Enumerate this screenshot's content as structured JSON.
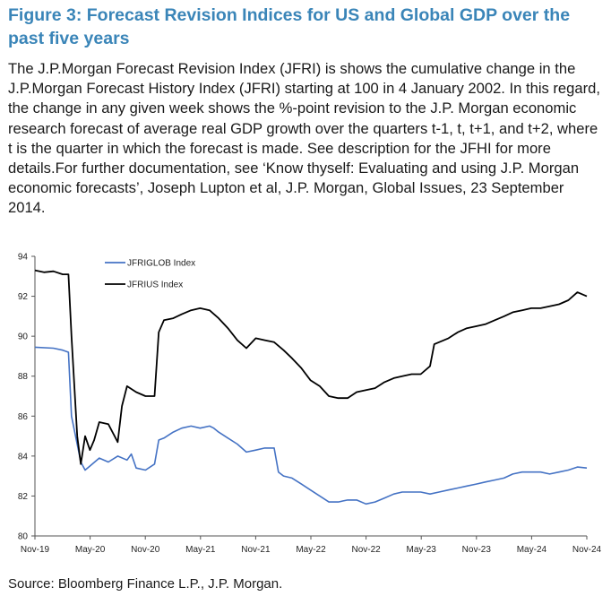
{
  "figure": {
    "title": "Figure 3: Forecast Revision Indices for US and Global GDP over the past five years",
    "description": "The J.P.Morgan Forecast Revision Index (JFRI) is shows the cumulative change in the J.P.Morgan Forecast History Index (JFRI) starting at 100 in 4 January 2002. In this regard, the change in any given week shows the %-point revision to the J.P. Morgan economic research forecast of average real GDP growth over the quarters t-1, t, t+1, and t+2, where t is the quarter in which the forecast is made. See description for the JFHI for more details.For further documentation, see ‘Know thyself: Evaluating and using J.P. Morgan economic forecasts’, Joseph Lupton et al, J.P. Morgan, Global Issues, 23 September 2014.",
    "source": "Source: Bloomberg Finance L.P., J.P. Morgan."
  },
  "chart_data": {
    "type": "line",
    "title": "",
    "xlabel": "",
    "ylabel": "",
    "ylim": [
      80,
      94
    ],
    "yticks": [
      80,
      82,
      84,
      86,
      88,
      90,
      92,
      94
    ],
    "xlim": [
      "2019-11",
      "2024-11"
    ],
    "xticks": [
      "Nov-19",
      "May-20",
      "Nov-20",
      "May-21",
      "Nov-21",
      "May-22",
      "Nov-22",
      "May-23",
      "Nov-23",
      "May-24",
      "Nov-24"
    ],
    "grid": false,
    "legend_position": "top-left",
    "series": [
      {
        "name": "JFRIGLOB Index",
        "color": "#4472c4",
        "points": [
          [
            "2019-11",
            89.45
          ],
          [
            "2020-01",
            89.4
          ],
          [
            "2020-02",
            89.3
          ],
          [
            "2020-02-20",
            89.2
          ],
          [
            "2020-03",
            86.0
          ],
          [
            "2020-04",
            83.7
          ],
          [
            "2020-04-15",
            83.3
          ],
          [
            "2020-05",
            83.5
          ],
          [
            "2020-06",
            83.9
          ],
          [
            "2020-07",
            83.7
          ],
          [
            "2020-08",
            84.0
          ],
          [
            "2020-09",
            83.8
          ],
          [
            "2020-09-15",
            84.1
          ],
          [
            "2020-10",
            83.4
          ],
          [
            "2020-11",
            83.3
          ],
          [
            "2020-12",
            83.6
          ],
          [
            "2020-12-15",
            84.8
          ],
          [
            "2021-01",
            84.9
          ],
          [
            "2021-02",
            85.2
          ],
          [
            "2021-03",
            85.4
          ],
          [
            "2021-04",
            85.5
          ],
          [
            "2021-05",
            85.4
          ],
          [
            "2021-06",
            85.5
          ],
          [
            "2021-06-15",
            85.4
          ],
          [
            "2021-07",
            85.2
          ],
          [
            "2021-08",
            84.9
          ],
          [
            "2021-09",
            84.6
          ],
          [
            "2021-10",
            84.2
          ],
          [
            "2021-11",
            84.3
          ],
          [
            "2021-12",
            84.4
          ],
          [
            "2022-01",
            84.4
          ],
          [
            "2022-01-15",
            83.2
          ],
          [
            "2022-02",
            83.0
          ],
          [
            "2022-03",
            82.9
          ],
          [
            "2022-04",
            82.6
          ],
          [
            "2022-05",
            82.3
          ],
          [
            "2022-06",
            82.0
          ],
          [
            "2022-07",
            81.7
          ],
          [
            "2022-08",
            81.7
          ],
          [
            "2022-09",
            81.8
          ],
          [
            "2022-10",
            81.8
          ],
          [
            "2022-11",
            81.6
          ],
          [
            "2022-12",
            81.7
          ],
          [
            "2023-01",
            81.9
          ],
          [
            "2023-02",
            82.1
          ],
          [
            "2023-03",
            82.2
          ],
          [
            "2023-04",
            82.2
          ],
          [
            "2023-05",
            82.2
          ],
          [
            "2023-06",
            82.1
          ],
          [
            "2023-07",
            82.2
          ],
          [
            "2023-08",
            82.3
          ],
          [
            "2023-09",
            82.4
          ],
          [
            "2023-10",
            82.5
          ],
          [
            "2023-11",
            82.6
          ],
          [
            "2023-12",
            82.7
          ],
          [
            "2024-01",
            82.8
          ],
          [
            "2024-02",
            82.9
          ],
          [
            "2024-03",
            83.1
          ],
          [
            "2024-04",
            83.2
          ],
          [
            "2024-05",
            83.2
          ],
          [
            "2024-06",
            83.2
          ],
          [
            "2024-07",
            83.1
          ],
          [
            "2024-08",
            83.2
          ],
          [
            "2024-09",
            83.3
          ],
          [
            "2024-10",
            83.45
          ],
          [
            "2024-11",
            83.4
          ]
        ]
      },
      {
        "name": "JFRIUS Index",
        "color": "#000000",
        "points": [
          [
            "2019-11",
            93.3
          ],
          [
            "2019-12",
            93.2
          ],
          [
            "2020-01",
            93.25
          ],
          [
            "2020-02",
            93.1
          ],
          [
            "2020-02-20",
            93.1
          ],
          [
            "2020-03",
            90.0
          ],
          [
            "2020-03-20",
            85.0
          ],
          [
            "2020-04",
            83.6
          ],
          [
            "2020-04-15",
            85.0
          ],
          [
            "2020-05",
            84.3
          ],
          [
            "2020-05-15",
            84.8
          ],
          [
            "2020-06",
            85.7
          ],
          [
            "2020-07",
            85.6
          ],
          [
            "2020-08",
            84.7
          ],
          [
            "2020-08-15",
            86.5
          ],
          [
            "2020-09",
            87.5
          ],
          [
            "2020-10",
            87.2
          ],
          [
            "2020-11",
            87.0
          ],
          [
            "2020-12",
            87.0
          ],
          [
            "2020-12-15",
            90.2
          ],
          [
            "2021-01",
            90.8
          ],
          [
            "2021-02",
            90.9
          ],
          [
            "2021-03",
            91.1
          ],
          [
            "2021-04",
            91.3
          ],
          [
            "2021-05",
            91.4
          ],
          [
            "2021-06",
            91.3
          ],
          [
            "2021-07",
            90.9
          ],
          [
            "2021-08",
            90.4
          ],
          [
            "2021-09",
            89.8
          ],
          [
            "2021-10",
            89.4
          ],
          [
            "2021-11",
            89.9
          ],
          [
            "2021-12",
            89.8
          ],
          [
            "2022-01",
            89.7
          ],
          [
            "2022-02",
            89.3
          ],
          [
            "2022-03",
            88.9
          ],
          [
            "2022-04",
            88.4
          ],
          [
            "2022-05",
            87.8
          ],
          [
            "2022-06",
            87.5
          ],
          [
            "2022-07",
            87.0
          ],
          [
            "2022-08",
            86.9
          ],
          [
            "2022-09",
            86.9
          ],
          [
            "2022-10",
            87.2
          ],
          [
            "2022-11",
            87.3
          ],
          [
            "2022-12",
            87.4
          ],
          [
            "2023-01",
            87.7
          ],
          [
            "2023-02",
            87.9
          ],
          [
            "2023-03",
            88.0
          ],
          [
            "2023-04",
            88.1
          ],
          [
            "2023-05",
            88.1
          ],
          [
            "2023-06",
            88.5
          ],
          [
            "2023-06-15",
            89.6
          ],
          [
            "2023-07",
            89.7
          ],
          [
            "2023-08",
            89.9
          ],
          [
            "2023-09",
            90.2
          ],
          [
            "2023-10",
            90.4
          ],
          [
            "2023-11",
            90.5
          ],
          [
            "2023-12",
            90.6
          ],
          [
            "2024-01",
            90.8
          ],
          [
            "2024-02",
            91.0
          ],
          [
            "2024-03",
            91.2
          ],
          [
            "2024-04",
            91.3
          ],
          [
            "2024-05",
            91.4
          ],
          [
            "2024-06",
            91.4
          ],
          [
            "2024-07",
            91.5
          ],
          [
            "2024-08",
            91.6
          ],
          [
            "2024-09",
            91.8
          ],
          [
            "2024-10",
            92.2
          ],
          [
            "2024-11",
            92.0
          ]
        ]
      }
    ]
  }
}
